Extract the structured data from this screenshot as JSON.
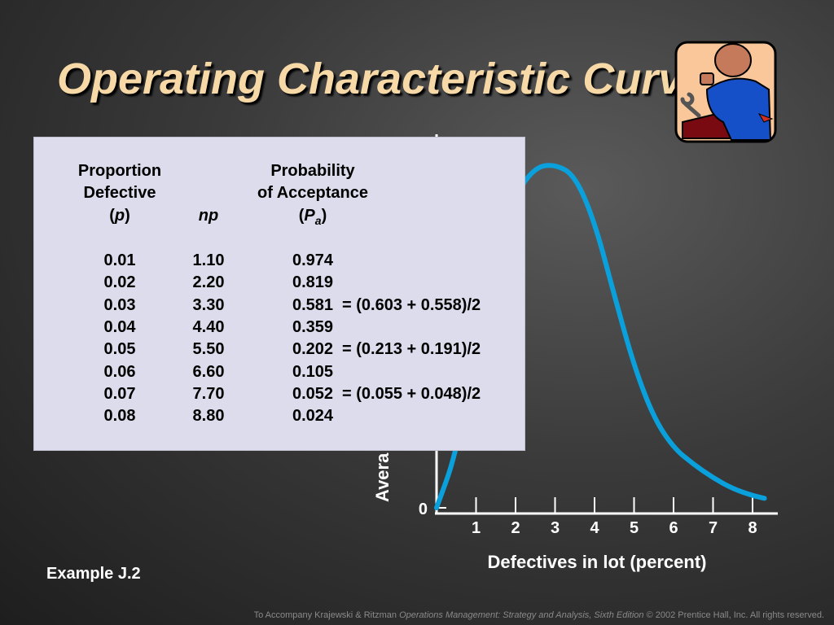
{
  "slide": {
    "title": "Operating Characteristic Curve",
    "example": "Example J.2",
    "footer_prefix": "To Accompany Krajewski & Ritzman ",
    "footer_book": "Operations Management: Strategy and Analysis, Sixth Edition",
    "footer_suffix": " © 2002 Prentice Hall, Inc. All rights reserved."
  },
  "table": {
    "headers": {
      "col1_line1": "Proportion",
      "col1_line2": "Defective",
      "col1_line3_open": "(",
      "col1_line3_var": "p",
      "col1_line3_close": ")",
      "col2": "np",
      "col3_line1": "Probability",
      "col3_line2": "of Acceptance",
      "col3_line3_open": "(",
      "col3_line3_var": "P",
      "col3_line3_sub": "a",
      "col3_line3_close": ")"
    },
    "rows": [
      {
        "p": "0.01",
        "np": "1.10",
        "pa": "0.974",
        "note": ""
      },
      {
        "p": "0.02",
        "np": "2.20",
        "pa": "0.819",
        "note": ""
      },
      {
        "p": "0.03",
        "np": "3.30",
        "pa": "0.581",
        "note": "= (0.603 + 0.558)/2"
      },
      {
        "p": "0.04",
        "np": "4.40",
        "pa": "0.359",
        "note": ""
      },
      {
        "p": "0.05",
        "np": "5.50",
        "pa": "0.202",
        "note": "= (0.213 + 0.191)/2"
      },
      {
        "p": "0.06",
        "np": "6.60",
        "pa": "0.105",
        "note": ""
      },
      {
        "p": "0.07",
        "np": "7.70",
        "pa": "0.052",
        "note": "= (0.055 + 0.048)/2"
      },
      {
        "p": "0.08",
        "np": "8.80",
        "pa": "0.024",
        "note": ""
      }
    ]
  },
  "chart_data": {
    "type": "line",
    "xlabel": "Defectives in lot (percent)",
    "ylabel_visible": "Avera",
    "y_tick_label": "0",
    "x_ticks": [
      "1",
      "2",
      "3",
      "4",
      "5",
      "6",
      "7",
      "8"
    ],
    "x": [
      0,
      0.5,
      1,
      1.5,
      2,
      2.5,
      3,
      3.5,
      4,
      4.5,
      5,
      5.5,
      6,
      6.5,
      7,
      7.5,
      8,
      8.3
    ],
    "y": [
      0,
      0.2,
      0.6,
      0.98,
      1.15,
      1.25,
      1.26,
      1.22,
      1.05,
      0.78,
      0.52,
      0.33,
      0.22,
      0.16,
      0.11,
      0.07,
      0.045,
      0.035
    ],
    "xlim": [
      0,
      8.5
    ],
    "ylim": [
      0,
      1.45
    ],
    "line_color": "#0aa0dc"
  }
}
